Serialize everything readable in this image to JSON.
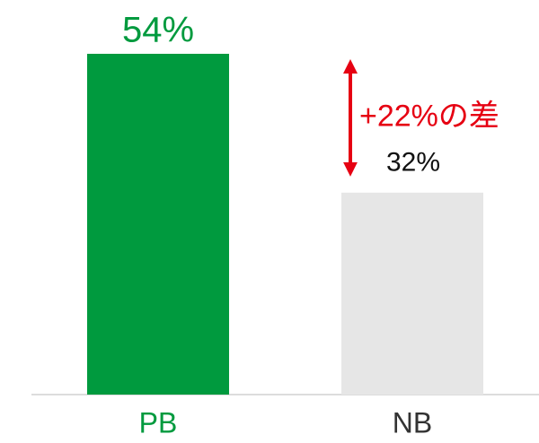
{
  "chart_data": {
    "type": "bar",
    "categories": [
      "PB",
      "NB"
    ],
    "values": [
      54,
      32
    ],
    "value_labels": [
      "54%",
      "32%"
    ],
    "colors": [
      "#009a3e",
      "#e6e6e6"
    ],
    "label_colors": [
      "#009a3e",
      "#111111"
    ],
    "annotation": "+22%の差",
    "annotation_color": "#e60012"
  }
}
